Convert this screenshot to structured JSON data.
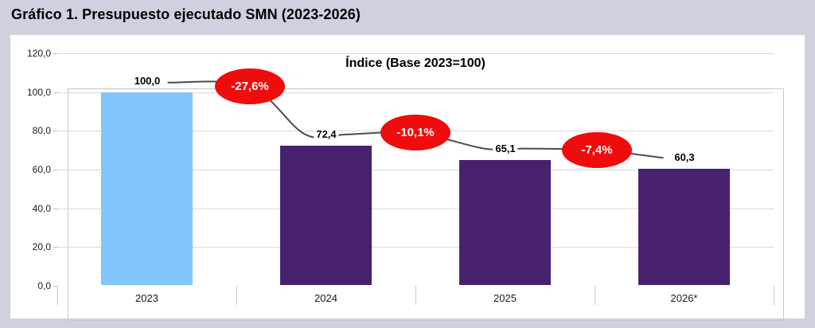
{
  "page": {
    "title": "Gráfico 1. Presupuesto ejecutado SMN (2023-2026)"
  },
  "chart_data": {
    "type": "bar",
    "title": "Índice (Base 2023=100)",
    "categories": [
      "2023",
      "2024",
      "2025",
      "2026*"
    ],
    "values": [
      100.0,
      72.4,
      65.1,
      60.3
    ],
    "value_labels": [
      "100,0",
      "72,4",
      "65,1",
      "60,3"
    ],
    "pct_change_labels": [
      "-27,6%",
      "-10,1%",
      "-7,4%"
    ],
    "ylim": [
      0,
      120
    ],
    "ytick_step": 20,
    "ytick_labels": [
      "0,0",
      "20,0",
      "40,0",
      "60,0",
      "80,0",
      "100,0",
      "120,0"
    ],
    "grid": true,
    "legend": "none",
    "bar_colors": [
      "#82C6FB",
      "#48216E",
      "#48216E",
      "#48216E"
    ],
    "colors": {
      "background": "#CED2DF",
      "panel": "#FFFFFF",
      "gridline": "#D9D9D9",
      "axis": "#C6C6C6",
      "connector_line": "#4D4D4D",
      "ellipse_fill": "#EE0C0C",
      "ellipse_text": "#FFFFFF",
      "text": "#000000"
    }
  }
}
